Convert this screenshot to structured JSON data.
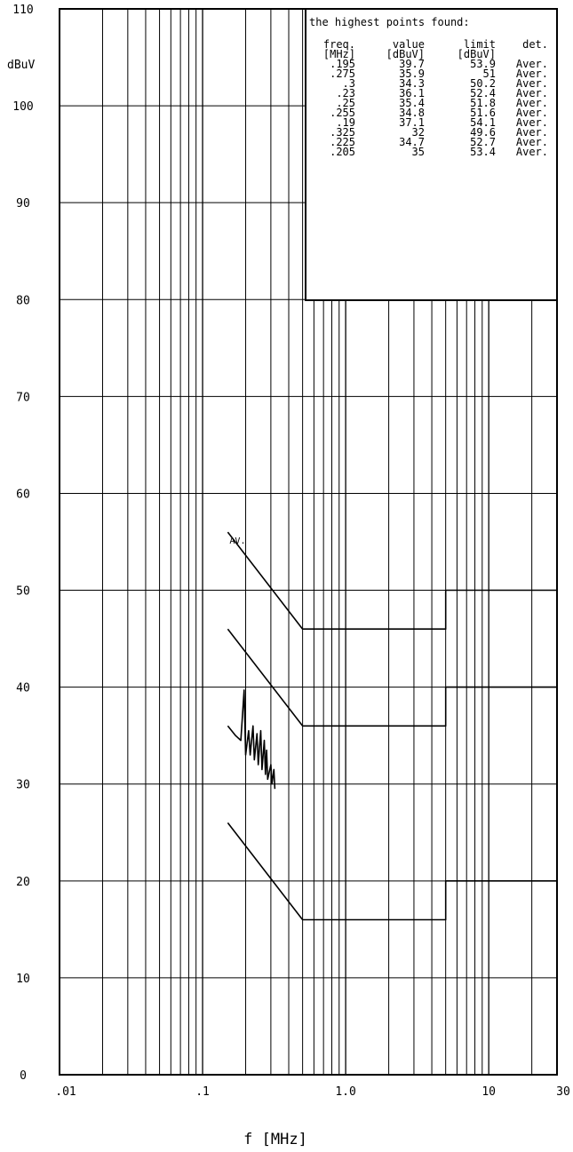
{
  "chart_data": {
    "type": "line",
    "x_scale": "log",
    "xlim": [
      0.01,
      30
    ],
    "ylim": [
      0,
      110
    ],
    "xlabel": "f [MHz]",
    "ylabel": "dBuV",
    "grid": true,
    "y_ticks": [
      0,
      10,
      20,
      30,
      40,
      50,
      60,
      70,
      80,
      90,
      100,
      110
    ],
    "x_ticks": [
      {
        "value": 0.01,
        "label": ".01"
      },
      {
        "value": 0.1,
        "label": ".1"
      },
      {
        "value": 1,
        "label": "1.0"
      },
      {
        "value": 10,
        "label": "10"
      },
      {
        "value": 30,
        "label": "30"
      }
    ],
    "series": [
      {
        "name": "",
        "values": [
          [
            0.15,
            56
          ],
          [
            0.5,
            46
          ],
          [
            5,
            46
          ],
          [
            5,
            50
          ],
          [
            30,
            50
          ]
        ]
      },
      {
        "name": "",
        "values": [
          [
            0.15,
            46
          ],
          [
            0.5,
            36
          ],
          [
            5,
            36
          ],
          [
            5,
            40
          ],
          [
            30,
            40
          ]
        ]
      },
      {
        "name": "",
        "values": [
          [
            0.15,
            26
          ],
          [
            0.5,
            16
          ],
          [
            5,
            16
          ],
          [
            5,
            20
          ],
          [
            30,
            20
          ]
        ]
      },
      {
        "name": "",
        "values": [
          [
            0.15,
            36
          ],
          [
            0.17,
            35
          ],
          [
            0.185,
            34.5
          ],
          [
            0.195,
            39.7
          ],
          [
            0.2,
            33
          ],
          [
            0.21,
            35.5
          ],
          [
            0.215,
            33
          ],
          [
            0.225,
            36
          ],
          [
            0.23,
            32.5
          ],
          [
            0.24,
            35.2
          ],
          [
            0.245,
            32
          ],
          [
            0.255,
            35.5
          ],
          [
            0.26,
            31.5
          ],
          [
            0.27,
            34.5
          ],
          [
            0.275,
            31
          ],
          [
            0.28,
            33.5
          ],
          [
            0.285,
            30.5
          ],
          [
            0.3,
            32
          ],
          [
            0.305,
            30
          ],
          [
            0.315,
            31.5
          ],
          [
            0.32,
            29.5
          ]
        ]
      }
    ],
    "annotations": [
      {
        "text": "AV.",
        "x": 0.15,
        "y": 55
      }
    ],
    "table": {
      "title": "the highest points found:",
      "headers": [
        "freq.",
        "value",
        "limit",
        "det."
      ],
      "units": [
        "[MHz]",
        "[dBuV]",
        "[dBuV]",
        ""
      ],
      "rows": [
        [
          ".195",
          "39.7",
          "53.9",
          "Aver."
        ],
        [
          ".275",
          "35.9",
          "51",
          "Aver."
        ],
        [
          ".3",
          "34.3",
          "50.2",
          "Aver."
        ],
        [
          ".23",
          "36.1",
          "52.4",
          "Aver."
        ],
        [
          ".25",
          "35.4",
          "51.8",
          "Aver."
        ],
        [
          ".255",
          "34.8",
          "51.6",
          "Aver."
        ],
        [
          ".19",
          "37.1",
          "54.1",
          "Aver."
        ],
        [
          ".325",
          "32",
          "49.6",
          "Aver."
        ],
        [
          ".225",
          "34.7",
          "52.7",
          "Aver."
        ],
        [
          ".205",
          "35",
          "53.4",
          "Aver."
        ]
      ]
    },
    "colors": {
      "line": "#000000",
      "background": "#ffffff"
    }
  }
}
